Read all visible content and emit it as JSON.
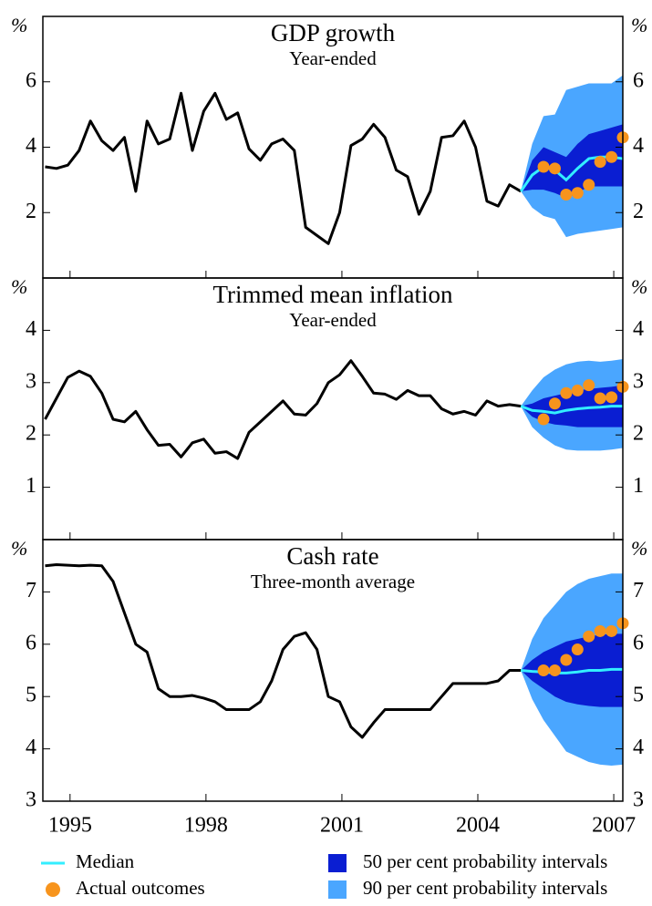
{
  "chart_data": {
    "type": "fan",
    "x": [
      1994.45,
      1994.7,
      1994.95,
      1995.2,
      1995.45,
      1995.7,
      1995.95,
      1996.2,
      1996.45,
      1996.7,
      1996.95,
      1997.2,
      1997.45,
      1997.7,
      1997.95,
      1998.2,
      1998.45,
      1998.7,
      1998.95,
      1999.2,
      1999.45,
      1999.7,
      1999.95,
      2000.2,
      2000.45,
      2000.7,
      2000.95,
      2001.2,
      2001.45,
      2001.7,
      2001.95,
      2002.2,
      2002.45,
      2002.7,
      2002.95,
      2003.2,
      2003.45,
      2003.7,
      2003.95,
      2004.2,
      2004.45,
      2004.7,
      2004.95
    ],
    "fan_x": [
      2004.95,
      2005.2,
      2005.45,
      2005.7,
      2005.95,
      2006.2,
      2006.45,
      2006.7,
      2006.95,
      2007.2
    ],
    "actual_x": [
      2005.45,
      2005.7,
      2005.95,
      2006.2,
      2006.45,
      2006.7,
      2006.95,
      2007.2
    ],
    "xlim": [
      1994.4,
      2007.2
    ],
    "xticks": [
      1995,
      1998,
      2001,
      2004,
      2007
    ],
    "line_color": "#000000",
    "legend": [
      {
        "label": "Median",
        "key": "median",
        "color": "#33eeff",
        "kind": "line"
      },
      {
        "label": "Actual outcomes",
        "key": "actual",
        "color": "#f7941d",
        "kind": "dot"
      },
      {
        "label": "50 per cent probability intervals",
        "key": "band50",
        "color": "#0a1ed2",
        "kind": "band"
      },
      {
        "label": "90 per cent probability intervals",
        "key": "band90",
        "color": "#4aa6ff",
        "kind": "band"
      }
    ],
    "panels": [
      {
        "title": "GDP growth",
        "subtitle": "Year-ended",
        "unit": "%",
        "ylim": [
          0,
          8
        ],
        "yticks": [
          2,
          4,
          6
        ],
        "values": [
          3.4,
          3.35,
          3.45,
          3.9,
          4.8,
          4.2,
          3.9,
          4.3,
          2.65,
          4.8,
          4.1,
          4.25,
          5.65,
          3.9,
          5.1,
          5.65,
          4.85,
          5.05,
          3.95,
          3.6,
          4.1,
          4.25,
          3.9,
          1.55,
          1.3,
          1.05,
          2.0,
          4.05,
          4.25,
          4.7,
          4.3,
          3.3,
          3.1,
          1.95,
          2.65,
          4.3,
          4.35,
          4.8,
          4.0,
          2.35,
          2.2,
          2.85,
          2.65
        ],
        "median": [
          2.65,
          3.15,
          3.4,
          3.3,
          3.0,
          3.35,
          3.65,
          3.7,
          3.7,
          3.65
        ],
        "band50": {
          "low": [
            2.65,
            2.7,
            2.7,
            2.6,
            2.45,
            2.6,
            2.8,
            2.8,
            2.8,
            2.8
          ],
          "high": [
            2.65,
            3.6,
            4.0,
            3.85,
            3.7,
            4.1,
            4.4,
            4.5,
            4.6,
            4.7
          ]
        },
        "band90": {
          "low": [
            2.65,
            2.15,
            1.9,
            1.8,
            1.25,
            1.35,
            1.4,
            1.45,
            1.5,
            1.55
          ],
          "high": [
            2.65,
            4.1,
            4.95,
            5.0,
            5.75,
            5.85,
            5.95,
            5.95,
            5.95,
            6.2
          ]
        },
        "actual": [
          3.4,
          3.35,
          2.55,
          2.6,
          2.85,
          3.55,
          3.7,
          4.3
        ]
      },
      {
        "title": "Trimmed mean inflation",
        "subtitle": "Year-ended",
        "unit": "%",
        "ylim": [
          0,
          5
        ],
        "yticks": [
          1,
          2,
          3,
          4
        ],
        "values": [
          2.3,
          2.7,
          3.1,
          3.22,
          3.12,
          2.8,
          2.3,
          2.25,
          2.45,
          2.1,
          1.8,
          1.82,
          1.58,
          1.85,
          1.92,
          1.65,
          1.68,
          1.55,
          2.05,
          2.25,
          2.45,
          2.65,
          2.4,
          2.38,
          2.6,
          3.0,
          3.15,
          3.42,
          3.12,
          2.8,
          2.78,
          2.68,
          2.85,
          2.75,
          2.75,
          2.5,
          2.4,
          2.45,
          2.38,
          2.65,
          2.55,
          2.58,
          2.55
        ],
        "median": [
          2.55,
          2.47,
          2.45,
          2.42,
          2.47,
          2.5,
          2.52,
          2.53,
          2.55,
          2.55
        ],
        "band50": {
          "low": [
            2.55,
            2.35,
            2.25,
            2.2,
            2.18,
            2.15,
            2.15,
            2.15,
            2.15,
            2.15
          ],
          "high": [
            2.55,
            2.6,
            2.7,
            2.75,
            2.8,
            2.85,
            2.88,
            2.9,
            2.92,
            2.95
          ]
        },
        "band90": {
          "low": [
            2.55,
            2.15,
            1.95,
            1.8,
            1.72,
            1.7,
            1.7,
            1.7,
            1.72,
            1.75
          ],
          "high": [
            2.55,
            2.85,
            3.1,
            3.25,
            3.35,
            3.4,
            3.42,
            3.4,
            3.42,
            3.45
          ]
        },
        "actual": [
          2.3,
          2.6,
          2.8,
          2.85,
          2.95,
          2.7,
          2.72,
          2.92
        ]
      },
      {
        "title": "Cash rate",
        "subtitle": "Three-month average",
        "unit": "%",
        "ylim": [
          3,
          8
        ],
        "yticks": [
          3,
          4,
          5,
          6,
          7
        ],
        "values": [
          7.5,
          7.52,
          7.51,
          7.5,
          7.51,
          7.5,
          7.2,
          6.6,
          6.0,
          5.85,
          5.15,
          5.0,
          5.0,
          5.02,
          4.97,
          4.9,
          4.75,
          4.75,
          4.75,
          4.9,
          5.3,
          5.9,
          6.15,
          6.22,
          5.9,
          5.0,
          4.9,
          4.42,
          4.22,
          4.5,
          4.75,
          4.75,
          4.75,
          4.75,
          4.75,
          5.0,
          5.25,
          5.25,
          5.25,
          5.25,
          5.3,
          5.5,
          5.5
        ],
        "median": [
          5.5,
          5.48,
          5.47,
          5.45,
          5.45,
          5.47,
          5.5,
          5.5,
          5.52,
          5.52
        ],
        "band50": {
          "low": [
            5.5,
            5.3,
            5.15,
            5.0,
            4.9,
            4.85,
            4.82,
            4.8,
            4.8,
            4.8
          ],
          "high": [
            5.5,
            5.7,
            5.85,
            5.95,
            6.05,
            6.1,
            6.15,
            6.18,
            6.2,
            6.2
          ]
        },
        "band90": {
          "low": [
            5.5,
            4.95,
            4.55,
            4.25,
            3.95,
            3.85,
            3.75,
            3.7,
            3.68,
            3.7
          ],
          "high": [
            5.5,
            6.1,
            6.5,
            6.75,
            7.0,
            7.15,
            7.25,
            7.3,
            7.35,
            7.35
          ]
        },
        "actual": [
          5.5,
          5.5,
          5.7,
          5.9,
          6.15,
          6.25,
          6.25,
          6.4
        ]
      }
    ]
  }
}
